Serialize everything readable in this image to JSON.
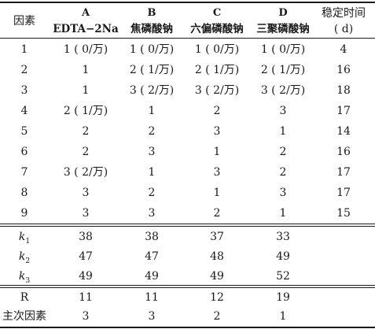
{
  "header": {
    "factor_label": "因素",
    "stable_time_label": "稳定时间",
    "stable_time_unit": "( d)",
    "columns": [
      {
        "letter": "A",
        "name": "EDTA−2Na"
      },
      {
        "letter": "B",
        "name": "焦磷酸钠"
      },
      {
        "letter": "C",
        "name": "六偏磷酸钠"
      },
      {
        "letter": "D",
        "name": "三聚磷酸钠"
      }
    ]
  },
  "rows": [
    {
      "no": "1",
      "a": "1 ( 0/万)",
      "b": "1 ( 0/万)",
      "c": "1 ( 0/万)",
      "d": "1 ( 0/万)",
      "t": "4"
    },
    {
      "no": "2",
      "a": "1",
      "b": "2 ( 1/万)",
      "c": "2 ( 1/万)",
      "d": "2 ( 1/万)",
      "t": "16"
    },
    {
      "no": "3",
      "a": "1",
      "b": "3 ( 2/万)",
      "c": "3 ( 2/万)",
      "d": "3 ( 2/万)",
      "t": "18"
    },
    {
      "no": "4",
      "a": "2 ( 1/万)",
      "b": "1",
      "c": "2",
      "d": "3",
      "t": "17"
    },
    {
      "no": "5",
      "a": "2",
      "b": "2",
      "c": "3",
      "d": "1",
      "t": "14"
    },
    {
      "no": "6",
      "a": "2",
      "b": "3",
      "c": "1",
      "d": "2",
      "t": "16"
    },
    {
      "no": "7",
      "a": "3 ( 2/万)",
      "b": "1",
      "c": "3",
      "d": "2",
      "t": "17"
    },
    {
      "no": "8",
      "a": "3",
      "b": "2",
      "c": "1",
      "d": "3",
      "t": "17"
    },
    {
      "no": "9",
      "a": "3",
      "b": "3",
      "c": "2",
      "d": "1",
      "t": "15"
    }
  ],
  "k_rows": [
    {
      "label": "k",
      "sub": "1",
      "a": "38",
      "b": "38",
      "c": "37",
      "d": "33"
    },
    {
      "label": "k",
      "sub": "2",
      "a": "47",
      "b": "47",
      "c": "48",
      "d": "49"
    },
    {
      "label": "k",
      "sub": "3",
      "a": "49",
      "b": "49",
      "c": "49",
      "d": "52"
    }
  ],
  "r_row": {
    "label": "R",
    "a": "11",
    "b": "11",
    "c": "12",
    "d": "19"
  },
  "order_row": {
    "label": "主次因素",
    "a": "3",
    "b": "3",
    "c": "2",
    "d": "1"
  }
}
